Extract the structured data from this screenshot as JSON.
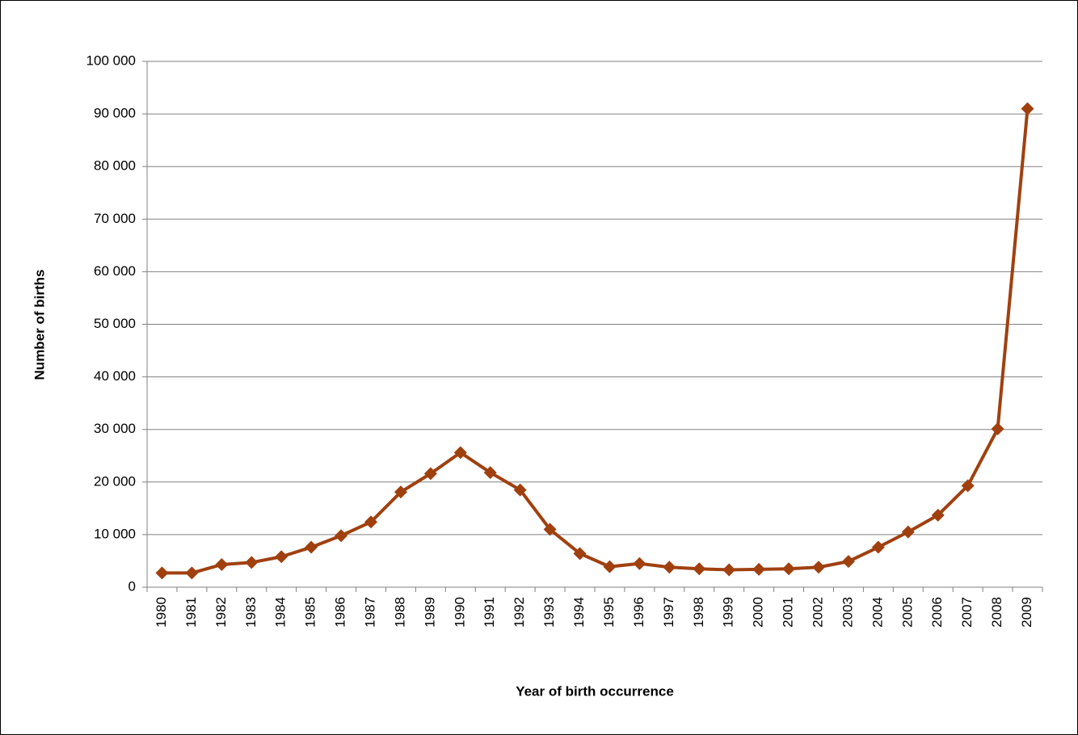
{
  "chart_data": {
    "type": "line",
    "x_label": "Year of birth occurrence",
    "y_label": "Number of births",
    "categories": [
      "1980",
      "1981",
      "1982",
      "1983",
      "1984",
      "1985",
      "1986",
      "1987",
      "1988",
      "1989",
      "1990",
      "1991",
      "1992",
      "1993",
      "1994",
      "1995",
      "1996",
      "1997",
      "1998",
      "1999",
      "2000",
      "2001",
      "2002",
      "2003",
      "2004",
      "2005",
      "2006",
      "2007",
      "2008",
      "2009"
    ],
    "values": [
      2700,
      2700,
      4300,
      4700,
      5800,
      7600,
      9800,
      12400,
      18100,
      21600,
      25600,
      21800,
      18500,
      11000,
      6400,
      3900,
      4500,
      3800,
      3500,
      3300,
      3400,
      3500,
      3800,
      4900,
      7600,
      10500,
      13700,
      19300,
      30100,
      91000
    ],
    "color": "#a0400f",
    "ylim": [
      0,
      100000
    ],
    "yticks": [
      0,
      {
        "value": 10000,
        "label": "10 000"
      },
      {
        "value": 20000,
        "label": "20 000"
      },
      {
        "value": 30000,
        "label": "30 000"
      },
      {
        "value": 40000,
        "label": "40 000"
      },
      {
        "value": 50000,
        "label": "50 000"
      },
      {
        "value": 60000,
        "label": "60 000"
      },
      {
        "value": 70000,
        "label": "70 000"
      },
      {
        "value": 80000,
        "label": "80 000"
      },
      {
        "value": 90000,
        "label": "90 000"
      },
      {
        "value": 100000,
        "label": "100 000"
      }
    ],
    "grid": true
  }
}
